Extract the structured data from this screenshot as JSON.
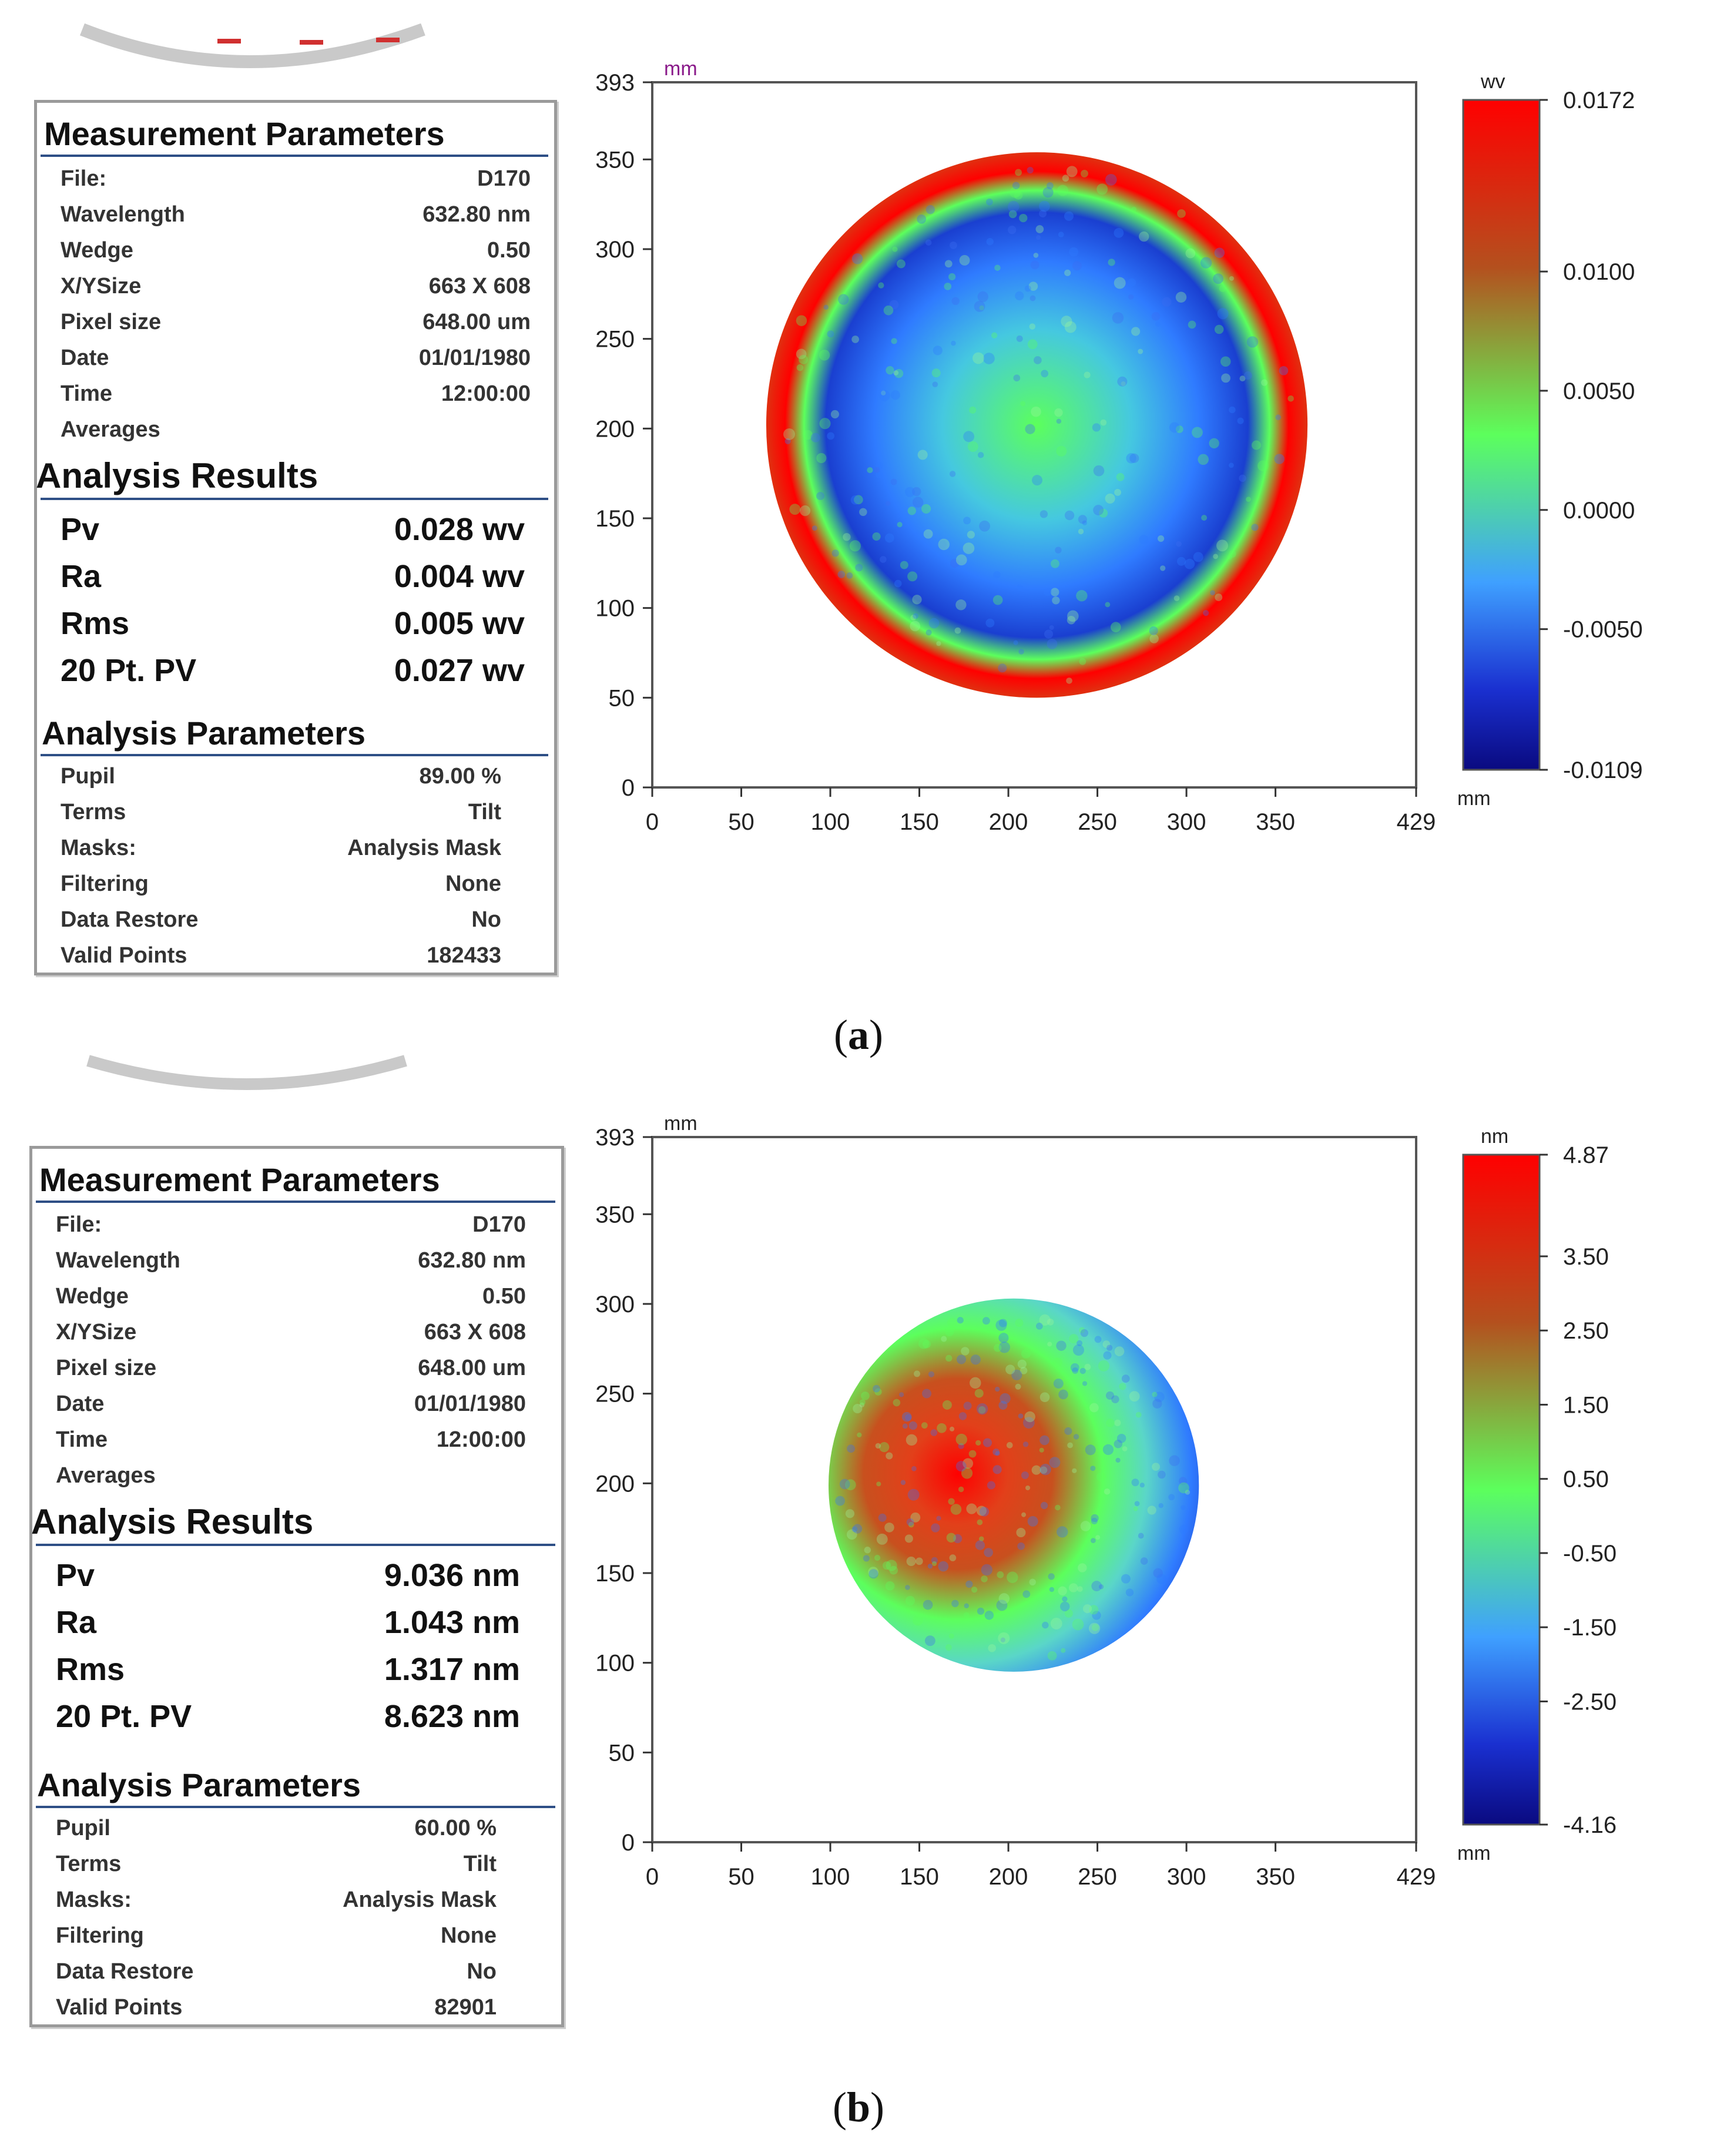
{
  "figures": [
    {
      "id": "a",
      "caption_letter": "a",
      "measurement": {
        "title": "Measurement Parameters",
        "rows": [
          {
            "label": "File:",
            "value": "D170"
          },
          {
            "label": "Wavelength",
            "value": "632.80  nm"
          },
          {
            "label": "Wedge",
            "value": "0.50"
          },
          {
            "label": "X/YSize",
            "value": "663 X 608"
          },
          {
            "label": "Pixel size",
            "value": "648.00  um"
          },
          {
            "label": "Date",
            "value": "01/01/1980"
          },
          {
            "label": "Time",
            "value": "12:00:00"
          },
          {
            "label": "Averages",
            "value": ""
          }
        ]
      },
      "results": {
        "title": "Analysis Results",
        "rows": [
          {
            "label": "Pv",
            "value": "0.028 wv"
          },
          {
            "label": "Ra",
            "value": "0.004 wv"
          },
          {
            "label": "Rms",
            "value": "0.005 wv"
          },
          {
            "label": "20 Pt. PV",
            "value": "0.027 wv"
          }
        ]
      },
      "analysis": {
        "title": "Analysis Parameters",
        "rows": [
          {
            "label": "Pupil",
            "value": "89.00  %"
          },
          {
            "label": "Terms",
            "value": "Tilt"
          },
          {
            "label": "Masks:",
            "value": "Analysis Mask"
          },
          {
            "label": "Filtering",
            "value": "None"
          },
          {
            "label": "Data Restore",
            "value": "No"
          },
          {
            "label": "Valid Points",
            "value": "182433"
          }
        ]
      }
    },
    {
      "id": "b",
      "caption_letter": "b",
      "measurement": {
        "title": "Measurement Parameters",
        "rows": [
          {
            "label": "File:",
            "value": "D170"
          },
          {
            "label": "Wavelength",
            "value": "632.80  nm"
          },
          {
            "label": "Wedge",
            "value": "0.50"
          },
          {
            "label": "X/YSize",
            "value": "663 X 608"
          },
          {
            "label": "Pixel size",
            "value": "648.00  um"
          },
          {
            "label": "Date",
            "value": "01/01/1980"
          },
          {
            "label": "Time",
            "value": "12:00:00"
          },
          {
            "label": "Averages",
            "value": ""
          }
        ]
      },
      "results": {
        "title": "Analysis Results",
        "rows": [
          {
            "label": "Pv",
            "value": "9.036 nm"
          },
          {
            "label": "Ra",
            "value": "1.043 nm"
          },
          {
            "label": "Rms",
            "value": "1.317 nm"
          },
          {
            "label": "20 Pt. PV",
            "value": "8.623 nm"
          }
        ]
      },
      "analysis": {
        "title": "Analysis Parameters",
        "rows": [
          {
            "label": "Pupil",
            "value": "60.00  %"
          },
          {
            "label": "Terms",
            "value": "Tilt"
          },
          {
            "label": "Masks:",
            "value": "Analysis Mask"
          },
          {
            "label": "Filtering",
            "value": "None"
          },
          {
            "label": "Data Restore",
            "value": "No"
          },
          {
            "label": "Valid Points",
            "value": "82901"
          }
        ]
      }
    }
  ],
  "chart_data": [
    {
      "type": "heatmap",
      "title": "",
      "x_unit_label": "mm",
      "y_unit_label": "mm",
      "xlim": [
        0,
        429
      ],
      "ylim": [
        0,
        393
      ],
      "x_ticks": [
        0,
        50,
        100,
        150,
        200,
        250,
        300,
        350,
        429
      ],
      "y_ticks": [
        0,
        50,
        100,
        150,
        200,
        250,
        300,
        350,
        393
      ],
      "pupil_center": [
        216,
        202
      ],
      "pupil_radius": 152,
      "colorbar": {
        "unit": "wv",
        "min": -0.0109,
        "max": 0.0172,
        "tick_values": [
          0.0172,
          0.01,
          0.005,
          0.0,
          -0.005,
          -0.0109
        ],
        "tick_labels": [
          "0.0172",
          "0.0100",
          "0.0050",
          "0.0000",
          "-0.0050",
          "-0.0109"
        ]
      },
      "pattern": "ring",
      "colors": {
        "low": "#0a0a80",
        "mid_low": "#2f7bff",
        "mid": "#5cff5c",
        "mid_high": "#c8501e",
        "high": "#ff0000"
      }
    },
    {
      "type": "heatmap",
      "title": "",
      "x_unit_label": "mm",
      "y_unit_label": "mm",
      "xlim": [
        0,
        429
      ],
      "ylim": [
        0,
        393
      ],
      "x_ticks": [
        0,
        50,
        100,
        150,
        200,
        250,
        300,
        350,
        429
      ],
      "y_ticks": [
        0,
        50,
        100,
        150,
        200,
        250,
        300,
        350,
        393
      ],
      "pupil_center": [
        203,
        199
      ],
      "pupil_radius": 104,
      "colorbar": {
        "unit": "nm",
        "min": -4.16,
        "max": 4.87,
        "tick_values": [
          4.87,
          3.5,
          2.5,
          1.5,
          0.5,
          -0.5,
          -1.5,
          -2.5,
          -4.16
        ],
        "tick_labels": [
          "4.87",
          "3.50",
          "2.50",
          "1.50",
          "0.50",
          "-0.50",
          "-1.50",
          "-2.50",
          "-4.16"
        ]
      },
      "pattern": "blob",
      "colors": {
        "low": "#0a0a80",
        "mid_low": "#2f7bff",
        "mid": "#5cff5c",
        "mid_high": "#c8501e",
        "high": "#ff0000"
      }
    }
  ]
}
